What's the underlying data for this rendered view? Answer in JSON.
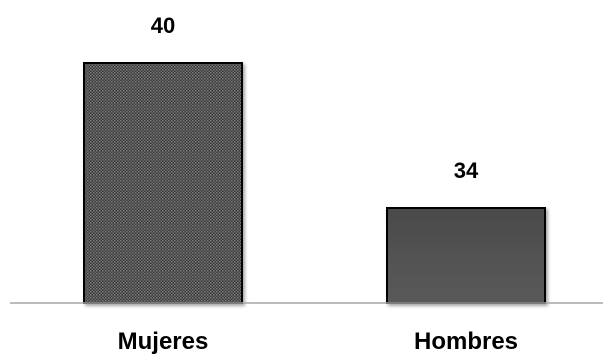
{
  "chart_data": {
    "type": "bar",
    "categories": [
      "Mujeres",
      "Hombres"
    ],
    "values": [
      40,
      34
    ],
    "ylim": [
      30,
      40
    ],
    "grid": false,
    "data_labels": [
      "40",
      "34"
    ],
    "colors": {
      "bar_fill": "#3a3a3a",
      "bar_pattern_light": "#7a7a7a",
      "bar_gradient_top": "#4a4a4a",
      "bar_gradient_bottom": "#5a5a5a",
      "bar_outline": "#000000",
      "axis_line": "#a6a6a6"
    }
  }
}
